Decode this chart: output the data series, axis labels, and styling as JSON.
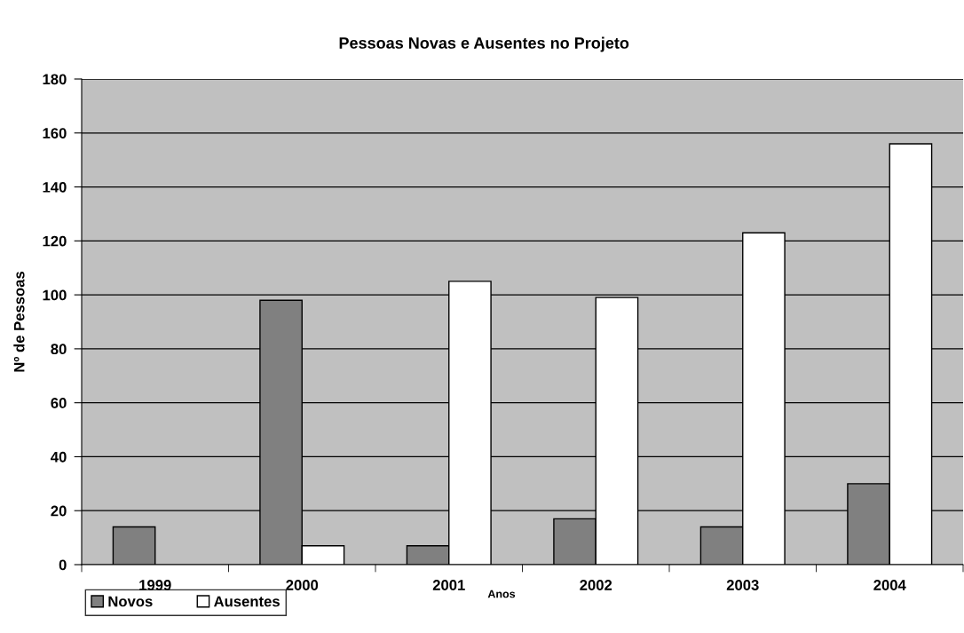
{
  "chart_data": {
    "type": "bar",
    "title": "Pessoas Novas e Ausentes no Projeto",
    "xlabel": "Anos",
    "ylabel": "Nº de Pessoas",
    "categories": [
      "1999",
      "2000",
      "2001",
      "2002",
      "2003",
      "2004"
    ],
    "series": [
      {
        "name": "Novos",
        "color": "#808080",
        "values": [
          14,
          98,
          7,
          17,
          14,
          30
        ]
      },
      {
        "name": "Ausentes",
        "color": "#ffffff",
        "values": [
          null,
          7,
          105,
          99,
          123,
          156
        ]
      }
    ],
    "ylim": [
      0,
      180
    ],
    "yticks": [
      0,
      20,
      40,
      60,
      80,
      100,
      120,
      140,
      160,
      180
    ],
    "grid": "y",
    "legend": "bottom left"
  }
}
